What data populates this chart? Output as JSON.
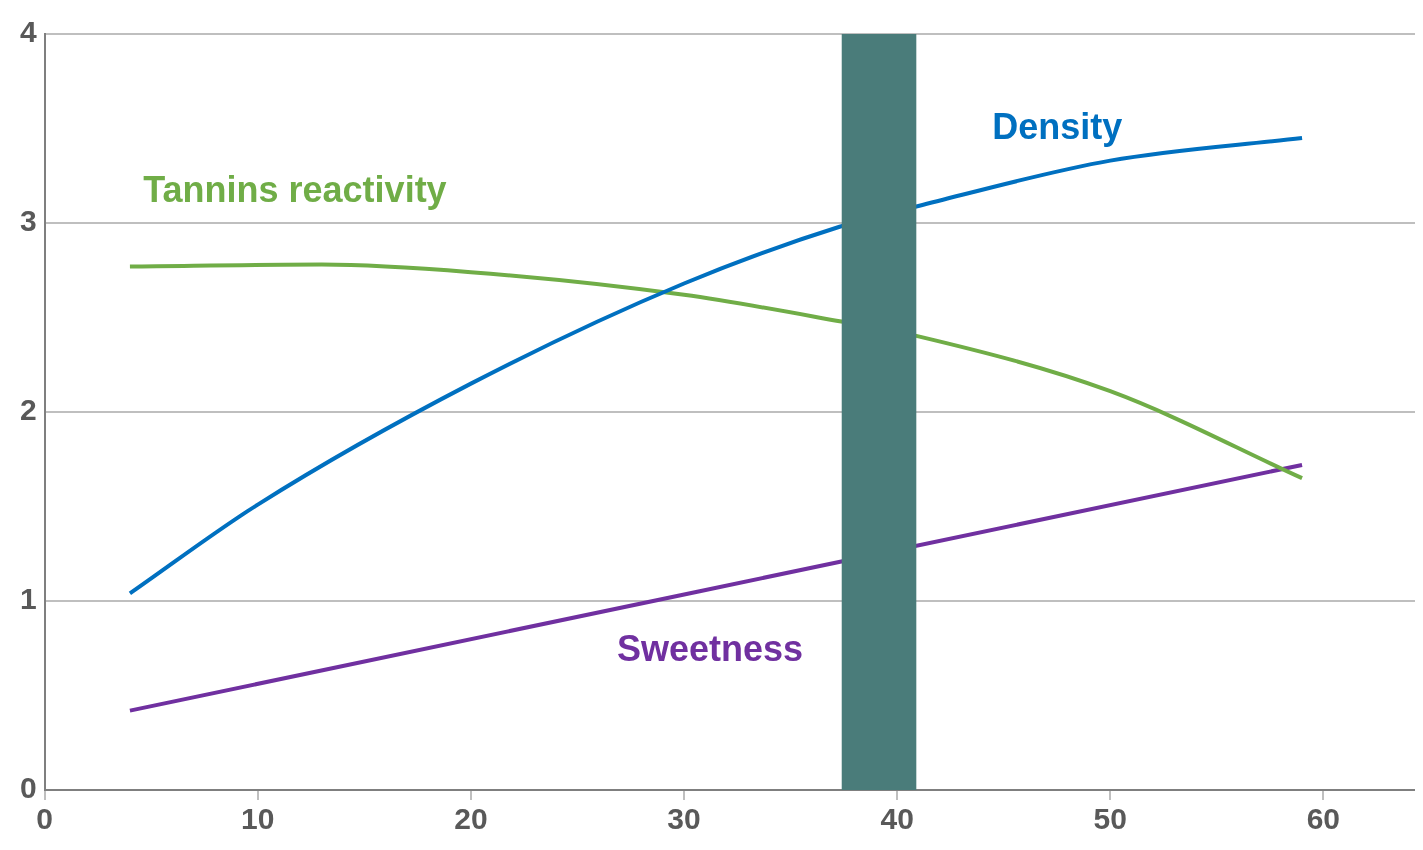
{
  "chart_data": {
    "type": "line",
    "xlim": [
      0,
      64.3
    ],
    "xticks": [
      0,
      10,
      20,
      30,
      40,
      50,
      60
    ],
    "ylim": [
      0,
      4
    ],
    "yticks": [
      0,
      1,
      2,
      3,
      4
    ],
    "grid": "y",
    "marker": "none",
    "line_style": "solid",
    "series": [
      {
        "name": "Density",
        "color": "#0070c0",
        "x": [
          4,
          10,
          20,
          30,
          37.3,
          41,
          50,
          59
        ],
        "values": [
          1.04,
          1.51,
          2.15,
          2.68,
          2.98,
          3.09,
          3.33,
          3.45
        ]
      },
      {
        "name": "Tannins reactivity",
        "color": "#70ad47",
        "x": [
          4,
          13,
          20,
          30,
          37.3,
          41,
          50,
          59
        ],
        "values": [
          2.77,
          2.78,
          2.74,
          2.62,
          2.48,
          2.4,
          2.11,
          1.65
        ]
      },
      {
        "name": "Sweetness",
        "color": "#7030a0",
        "x": [
          4,
          59
        ],
        "values": [
          0.42,
          1.72
        ]
      }
    ],
    "bands": [
      {
        "axis": "x",
        "from": 37.4,
        "to": 40.9,
        "color": "#4a7c7a"
      }
    ]
  }
}
